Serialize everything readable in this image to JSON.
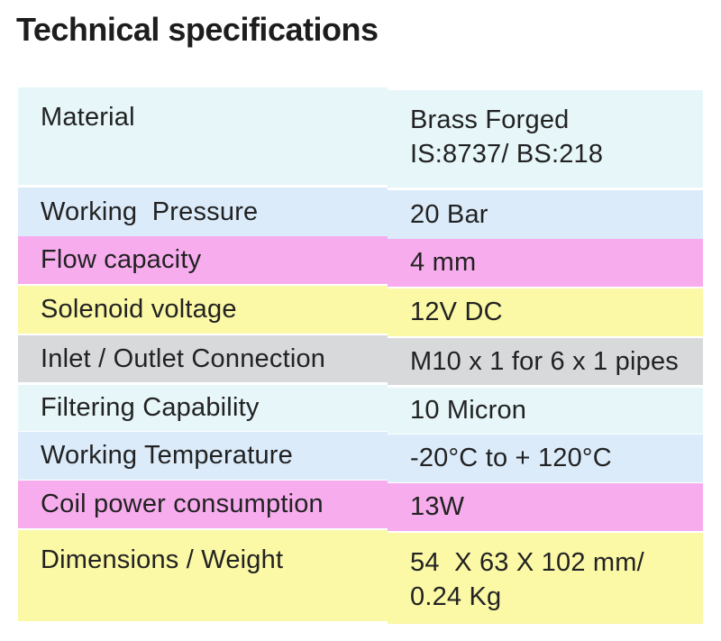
{
  "title": "Technical specifications",
  "colors": {
    "cyan": "#e6f6f9",
    "blue": "#dbebfa",
    "pink": "#f7aded",
    "yellow": "#fbf8a6",
    "gray": "#d7d9db",
    "text": "#222222"
  },
  "table": {
    "rows": [
      {
        "label": "Material",
        "value": "Brass Forged\nIS:8737/ BS:218",
        "color": "cyan"
      },
      {
        "label": "Working  Pressure",
        "value": "20 Bar",
        "color": "blue"
      },
      {
        "label": "Flow capacity",
        "value": "4 mm",
        "color": "pink"
      },
      {
        "label": "Solenoid voltage",
        "value": "12V DC",
        "color": "yellow"
      },
      {
        "label": "Inlet / Outlet Connection",
        "value": "M10 x 1 for 6 x 1 pipes",
        "color": "gray"
      },
      {
        "label": "Filtering Capability",
        "value": "10 Micron",
        "color": "cyan"
      },
      {
        "label": "Working Temperature",
        "value": "-20°C to + 120°C",
        "color": "blue"
      },
      {
        "label": "Coil power consumption",
        "value": "13W",
        "color": "pink"
      },
      {
        "label": "Dimensions / Weight",
        "value": "54  X 63 X 102 mm/\n0.24 Kg",
        "color": "yellow"
      }
    ]
  }
}
